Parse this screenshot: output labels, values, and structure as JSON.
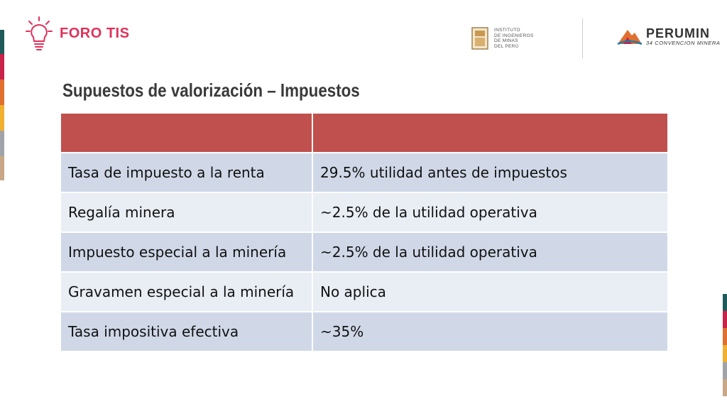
{
  "brand": {
    "name": "FORO TIS",
    "icon": "lightbulb-icon"
  },
  "logos": {
    "institute": {
      "lines": [
        "INSTITUTO",
        "DE INGENIEROS",
        "DE MINAS",
        "DEL PERÚ"
      ]
    },
    "perumin": {
      "name": "PERUMIN",
      "subtitle": "34 CONVENCION MINERA"
    }
  },
  "slide": {
    "title": "Supuestos de valorización – Impuestos",
    "table": {
      "header": [
        "",
        ""
      ],
      "rows": [
        [
          "Tasa de impuesto a la renta",
          "29.5% utilidad antes de impuestos"
        ],
        [
          "Regalía minera",
          "~2.5% de la utilidad operativa"
        ],
        [
          "Impuesto especial a la minería",
          "~2.5% de la utilidad operativa"
        ],
        [
          "Gravamen especial a la minería",
          "No aplica"
        ],
        [
          "Tasa impositiva efectiva",
          "~35%"
        ]
      ]
    }
  },
  "colors": {
    "accent": "#e0315a",
    "header_fill": "#c0504d",
    "row_dark": "#d0d8e8",
    "row_light": "#e9edf4",
    "stripes": [
      "#1f5b5b",
      "#c8234a",
      "#e07030",
      "#f0b030",
      "#a0a4a8",
      "#c8a888"
    ]
  }
}
